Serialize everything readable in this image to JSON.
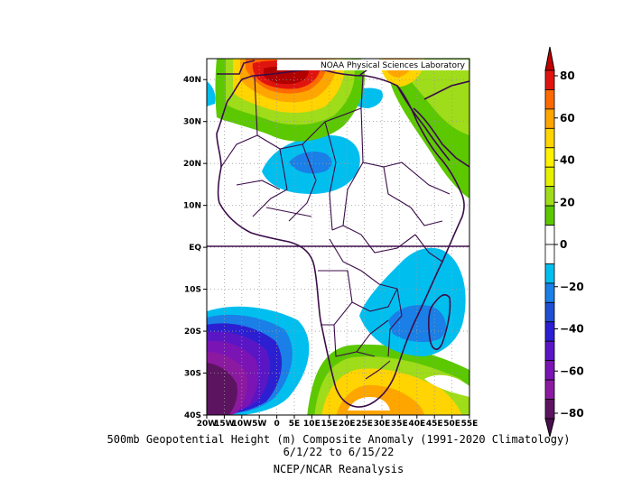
{
  "chart_data": {
    "type": "heatmap",
    "map_region": "Africa",
    "title": "500mb Geopotential Height (m) Composite Anomaly (1991-2020 Climatology)",
    "date_range": "6/1/22  to 6/15/22",
    "source": "NCEP/NCAR Reanalysis",
    "credit": "NOAA Physical Sciences Laboratory",
    "lon_ticks": [
      "20W",
      "15W",
      "10W",
      "5W",
      "0",
      "5E",
      "10E",
      "15E",
      "20E",
      "25E",
      "30E",
      "35E",
      "40E",
      "45E",
      "50E",
      "55E"
    ],
    "lat_ticks": [
      "40N",
      "30N",
      "20N",
      "10N",
      "EQ",
      "10S",
      "20S",
      "30S",
      "40S"
    ],
    "lon_range": [
      -20,
      55
    ],
    "lat_range": [
      -40,
      45
    ],
    "colorbar": {
      "labels": [
        "80",
        "60",
        "40",
        "20",
        "0",
        "−20",
        "−40",
        "−60",
        "−80"
      ],
      "min": -80,
      "max": 80,
      "colors": [
        "#e0140f",
        "#ff6a00",
        "#ffa500",
        "#ffd400",
        "#fff200",
        "#e6f000",
        "#9fdc1a",
        "#5cc800",
        "#ffffff",
        "#ffffff",
        "#00bfef",
        "#1a7fe6",
        "#1f4fd1",
        "#2b1fd1",
        "#5a16c4",
        "#7a14b4",
        "#8c1aa0",
        "#5c1460"
      ]
    },
    "features": [
      {
        "name": "positive anomaly over Morocco/Algeria",
        "center": [
          2,
          38
        ],
        "peak": 70
      },
      {
        "name": "negative anomaly over West Africa",
        "center": [
          11,
          20
        ],
        "peak": -25
      },
      {
        "name": "negative anomaly over Mozambique",
        "center": [
          37,
          -17
        ],
        "peak": -25
      },
      {
        "name": "strong negative anomaly off SW Africa",
        "center": [
          -15,
          -35
        ],
        "peak": -80
      },
      {
        "name": "positive anomaly over South Africa",
        "center": [
          28,
          -33
        ],
        "peak": 35
      },
      {
        "name": "positive anomaly over Middle East",
        "center": [
          45,
          35
        ],
        "peak": 20
      }
    ]
  }
}
